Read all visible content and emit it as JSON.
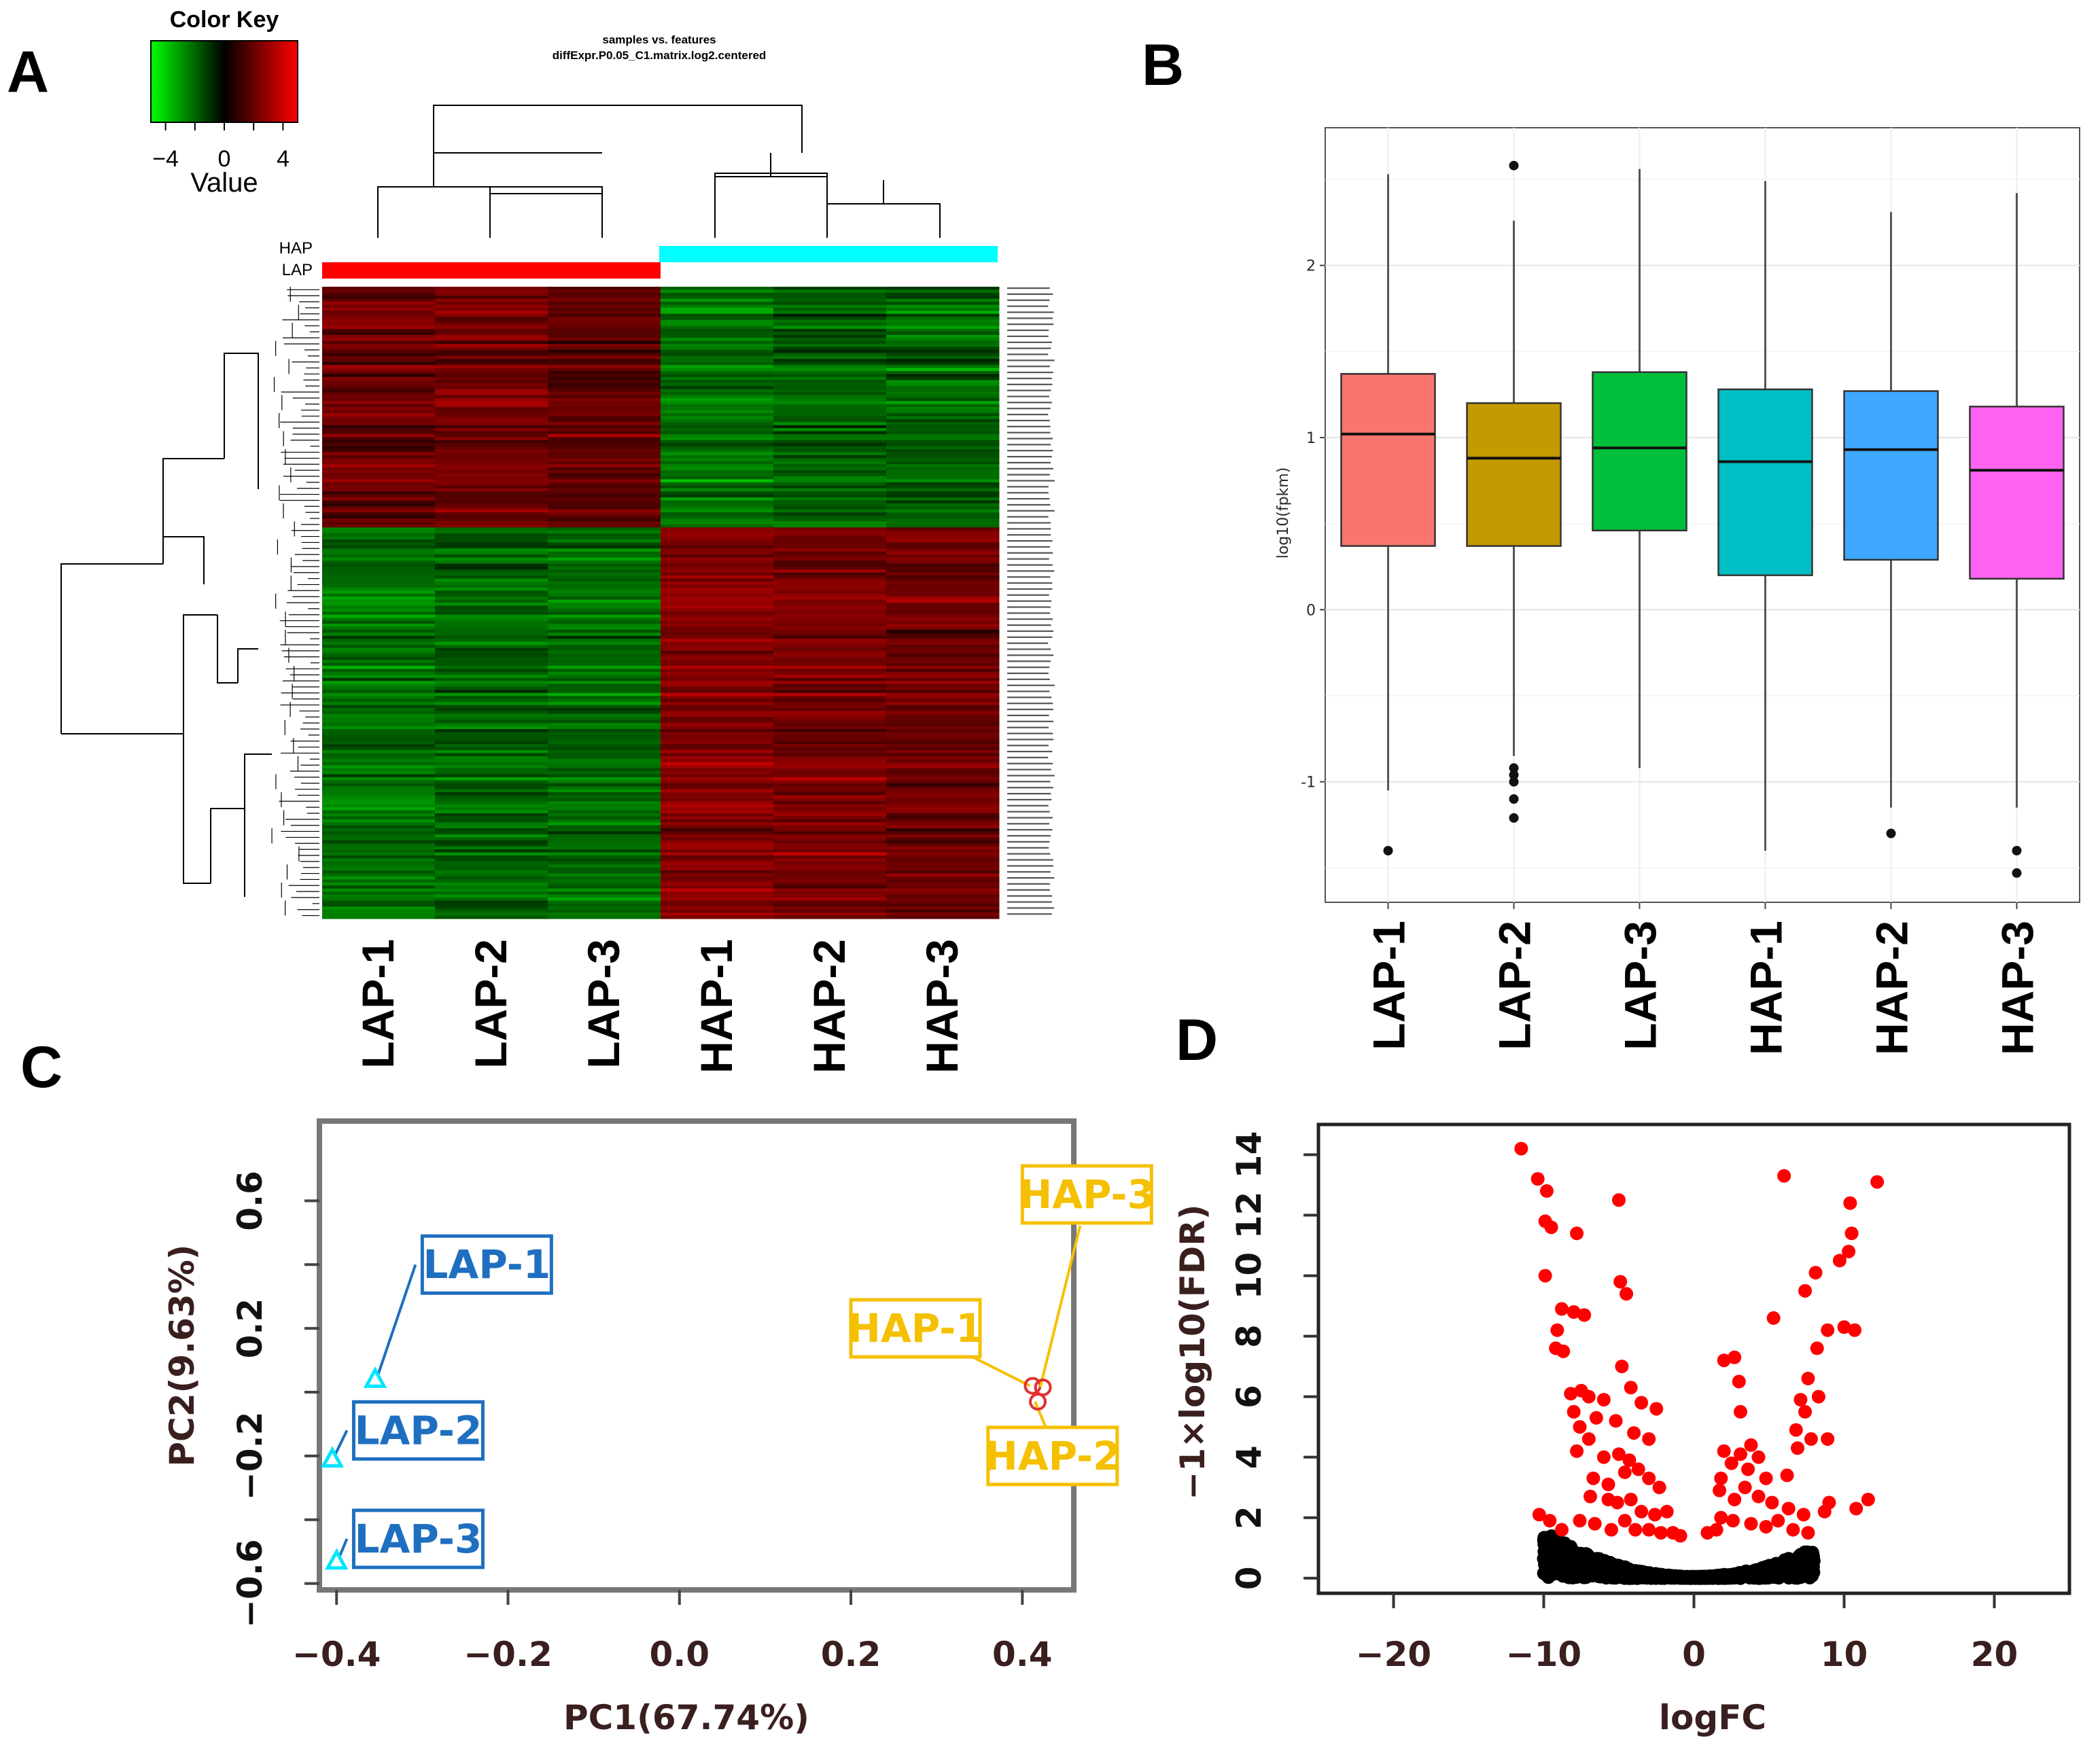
{
  "colors": {
    "lap_bar": "#ff0000",
    "hap_bar": "#00ffff",
    "box_fills": [
      "#f8766d",
      "#c49a00",
      "#00bf3a",
      "#00bfc4",
      "#3ea7ff",
      "#ff62f0"
    ],
    "lap_pca": "#1f6fc0",
    "hap_pca": "#f5c000",
    "lap_marker": "#00e5ff",
    "hap_marker": "#e03030",
    "volcano_sig": "#ff0000",
    "volcano_ns": "#000000"
  },
  "panels": {
    "a": "A",
    "b": "B",
    "c": "C",
    "d": "D"
  },
  "chart_data": [
    {
      "panel": "A",
      "type": "heatmap",
      "title_line1": "samples vs. features",
      "title_line2": "diffExpr.P0.05_C1.matrix.log2.centered",
      "color_key": {
        "title": "Color Key",
        "xlabel": "Value",
        "ticks": [
          "−4",
          "0",
          "4"
        ],
        "range": [
          -5,
          5
        ]
      },
      "group_labels": [
        "HAP",
        "LAP"
      ],
      "samples": [
        "LAP-1",
        "LAP-2",
        "LAP-3",
        "HAP-1",
        "HAP-2",
        "HAP-3"
      ],
      "row_blocks": [
        {
          "rows": 80,
          "group_means": [
            2.0,
            2.2,
            1.8,
            -2.2,
            -1.8,
            -2.0
          ]
        },
        {
          "rows": 130,
          "group_means": [
            -2.2,
            -2.0,
            -2.1,
            2.6,
            2.3,
            2.2
          ]
        }
      ]
    },
    {
      "panel": "B",
      "type": "box",
      "ylabel": "log10(fpkm)",
      "yticks": [
        "-1",
        "0",
        "1",
        "2"
      ],
      "ylim": [
        -1.7,
        2.8
      ],
      "categories": [
        "LAP-1",
        "LAP-2",
        "LAP-3",
        "HAP-1",
        "HAP-2",
        "HAP-3"
      ],
      "boxes": [
        {
          "q1": 0.37,
          "median": 1.02,
          "q3": 1.37,
          "wmin": -1.05,
          "wmax": 2.53,
          "outliers": [
            -1.4
          ]
        },
        {
          "q1": 0.37,
          "median": 0.88,
          "q3": 1.2,
          "wmin": -0.85,
          "wmax": 2.26,
          "outliers": [
            2.58,
            -0.92,
            -0.96,
            -1.0,
            -1.1,
            -1.21
          ]
        },
        {
          "q1": 0.46,
          "median": 0.94,
          "q3": 1.38,
          "wmin": -0.92,
          "wmax": 2.56,
          "outliers": []
        },
        {
          "q1": 0.2,
          "median": 0.86,
          "q3": 1.28,
          "wmin": -1.4,
          "wmax": 2.49,
          "outliers": []
        },
        {
          "q1": 0.29,
          "median": 0.93,
          "q3": 1.27,
          "wmin": -1.15,
          "wmax": 2.31,
          "outliers": [
            -1.3
          ]
        },
        {
          "q1": 0.18,
          "median": 0.81,
          "q3": 1.18,
          "wmin": -1.15,
          "wmax": 2.42,
          "outliers": [
            -1.4,
            -1.53
          ]
        }
      ]
    },
    {
      "panel": "C",
      "type": "scatter",
      "xlabel": "PC1(67.74%)",
      "ylabel": "PC2(9.63%)",
      "xlim": [
        -0.42,
        0.46
      ],
      "ylim": [
        -0.62,
        0.85
      ],
      "xticks": [
        "−0.4",
        "−0.2",
        "0.0",
        "0.2",
        "0.4"
      ],
      "yticks": [
        "−0.6",
        "−0.2",
        "0.2",
        "0.6"
      ],
      "points": [
        {
          "label": "LAP-1",
          "x": -0.355,
          "y": 0.04,
          "group": "LAP",
          "lx": -0.3,
          "ly": 0.4
        },
        {
          "label": "LAP-2",
          "x": -0.405,
          "y": -0.21,
          "group": "LAP",
          "lx": -0.38,
          "ly": -0.12
        },
        {
          "label": "LAP-3",
          "x": -0.4,
          "y": -0.53,
          "group": "LAP",
          "lx": -0.38,
          "ly": -0.46
        },
        {
          "label": "HAP-1",
          "x": 0.412,
          "y": 0.02,
          "group": "HAP",
          "lx": 0.2,
          "ly": 0.2
        },
        {
          "label": "HAP-2",
          "x": 0.418,
          "y": -0.03,
          "group": "HAP",
          "lx": 0.36,
          "ly": -0.2
        },
        {
          "label": "HAP-3",
          "x": 0.424,
          "y": 0.015,
          "group": "HAP",
          "lx": 0.4,
          "ly": 0.62
        }
      ]
    },
    {
      "panel": "D",
      "type": "scatter",
      "xlabel": "logFC",
      "ylabel": "−1×log10(FDR)",
      "xlim": [
        -25,
        25
      ],
      "ylim": [
        -0.5,
        15
      ],
      "xticks": [
        "−20",
        "−10",
        "0",
        "10",
        "20"
      ],
      "yticks": [
        "0",
        "2",
        "4",
        "6",
        "8",
        "10",
        "12",
        "14"
      ],
      "significant_points": [
        [
          -11.5,
          14.2
        ],
        [
          -10.4,
          13.2
        ],
        [
          -9.8,
          12.8
        ],
        [
          -9.5,
          11.6
        ],
        [
          -9.9,
          11.8
        ],
        [
          -7.8,
          11.4
        ],
        [
          -5,
          12.5
        ],
        [
          -9.9,
          10.0
        ],
        [
          -8.8,
          8.9
        ],
        [
          -8,
          8.8
        ],
        [
          -7.3,
          8.7
        ],
        [
          -4.9,
          9.8
        ],
        [
          -4.5,
          9.4
        ],
        [
          -9.1,
          8.2
        ],
        [
          -9.2,
          7.6
        ],
        [
          -8.7,
          7.5
        ],
        [
          -4.8,
          7.0
        ],
        [
          -4.2,
          6.3
        ],
        [
          -8.2,
          6.1
        ],
        [
          -7.5,
          6.2
        ],
        [
          -7.0,
          6.0
        ],
        [
          -6.0,
          5.9
        ],
        [
          -8.0,
          5.5
        ],
        [
          -6.5,
          5.3
        ],
        [
          -3.5,
          5.8
        ],
        [
          -2.5,
          5.6
        ],
        [
          -7.6,
          5.0
        ],
        [
          -7.0,
          4.6
        ],
        [
          -5.2,
          5.2
        ],
        [
          -4.0,
          4.8
        ],
        [
          -3.0,
          4.6
        ],
        [
          -7.8,
          4.2
        ],
        [
          -6.0,
          4.0
        ],
        [
          -5.0,
          4.1
        ],
        [
          -4.3,
          3.9
        ],
        [
          -6.7,
          3.3
        ],
        [
          -5.7,
          3.1
        ],
        [
          -4.6,
          3.5
        ],
        [
          -3.7,
          3.6
        ],
        [
          -3.0,
          3.3
        ],
        [
          -2.3,
          3.0
        ],
        [
          -6.9,
          2.7
        ],
        [
          -5.7,
          2.6
        ],
        [
          -5.1,
          2.5
        ],
        [
          -4.2,
          2.6
        ],
        [
          -3.5,
          2.2
        ],
        [
          -2.6,
          2.1
        ],
        [
          -1.8,
          2.2
        ],
        [
          -10.3,
          2.1
        ],
        [
          -9.6,
          1.9
        ],
        [
          -8.8,
          1.6
        ],
        [
          -7.6,
          1.9
        ],
        [
          -6.6,
          1.8
        ],
        [
          -5.5,
          1.6
        ],
        [
          -4.6,
          1.9
        ],
        [
          -3.9,
          1.6
        ],
        [
          -3.0,
          1.6
        ],
        [
          -2.2,
          1.5
        ],
        [
          -1.4,
          1.5
        ],
        [
          12.2,
          13.1
        ],
        [
          10.4,
          12.4
        ],
        [
          10.5,
          11.4
        ],
        [
          10.3,
          10.8
        ],
        [
          9.7,
          10.5
        ],
        [
          8.1,
          10.1
        ],
        [
          7.4,
          9.5
        ],
        [
          8.9,
          8.2
        ],
        [
          8.2,
          7.6
        ],
        [
          5.3,
          8.6
        ],
        [
          6.0,
          13.3
        ],
        [
          10.0,
          8.3
        ],
        [
          10.7,
          8.2
        ],
        [
          2.7,
          7.3
        ],
        [
          2.0,
          7.2
        ],
        [
          3.0,
          6.5
        ],
        [
          7.6,
          6.6
        ],
        [
          7.1,
          5.9
        ],
        [
          8.3,
          6.0
        ],
        [
          7.4,
          5.5
        ],
        [
          6.8,
          4.9
        ],
        [
          7.8,
          4.6
        ],
        [
          8.9,
          4.6
        ],
        [
          3.1,
          5.5
        ],
        [
          3.8,
          4.4
        ],
        [
          2.0,
          4.2
        ],
        [
          3.1,
          4.1
        ],
        [
          4.3,
          4.0
        ],
        [
          6.9,
          4.3
        ],
        [
          2.5,
          3.8
        ],
        [
          3.6,
          3.6
        ],
        [
          1.8,
          3.3
        ],
        [
          3.4,
          3.0
        ],
        [
          4.8,
          3.3
        ],
        [
          6.2,
          3.4
        ],
        [
          1.7,
          2.9
        ],
        [
          2.7,
          2.6
        ],
        [
          4.3,
          2.7
        ],
        [
          5.2,
          2.5
        ],
        [
          6.3,
          2.3
        ],
        [
          11.6,
          2.6
        ],
        [
          10.8,
          2.3
        ],
        [
          9.0,
          2.5
        ],
        [
          8.7,
          2.2
        ],
        [
          7.3,
          2.1
        ],
        [
          1.8,
          2.0
        ],
        [
          2.6,
          1.9
        ],
        [
          3.8,
          1.8
        ],
        [
          4.8,
          1.7
        ],
        [
          5.6,
          1.9
        ],
        [
          6.6,
          1.6
        ],
        [
          7.6,
          1.5
        ],
        [
          1.5,
          1.6
        ],
        [
          0.9,
          1.5
        ],
        [
          -0.9,
          1.4
        ]
      ],
      "ns_envelope_x": [
        -10,
        8
      ]
    }
  ]
}
